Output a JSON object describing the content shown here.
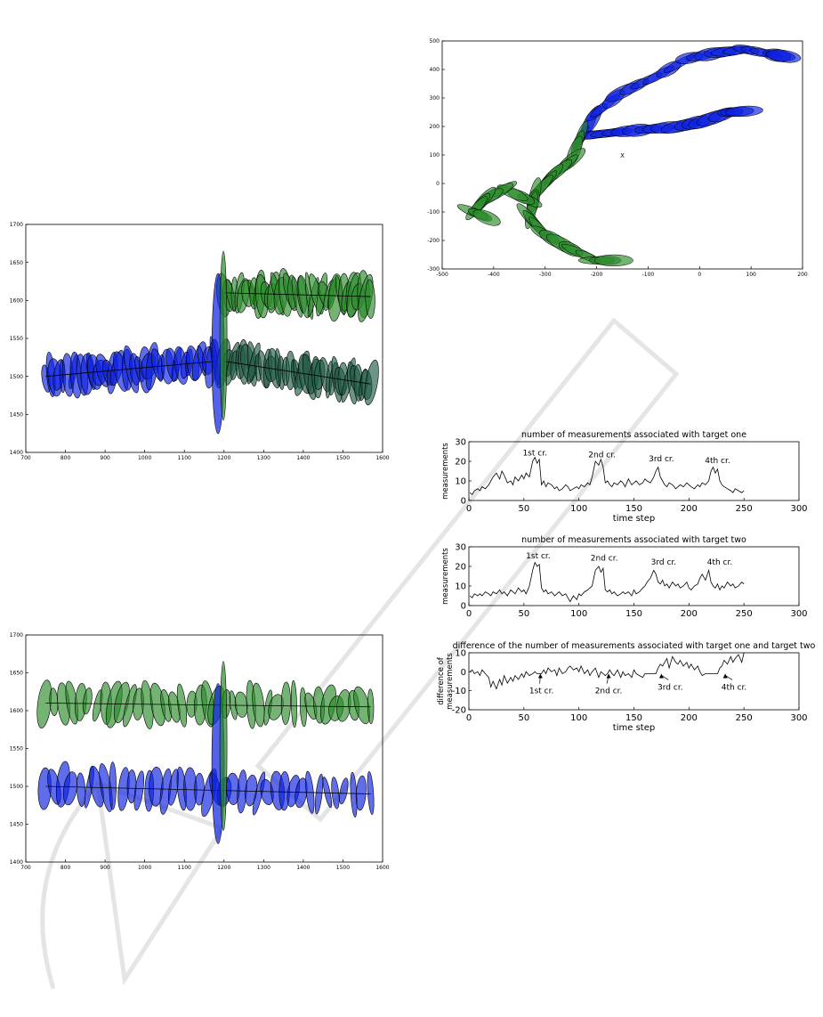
{
  "chart_data": [
    {
      "id": "track-plot-top",
      "type": "scatter",
      "xlim": [
        700,
        1600
      ],
      "ylim": [
        1400,
        1700
      ],
      "xticks": [
        700,
        800,
        900,
        1000,
        1100,
        1200,
        1300,
        1400,
        1500,
        1600
      ],
      "yticks": [
        1400,
        1450,
        1500,
        1550,
        1600,
        1650,
        1700
      ],
      "grid": false,
      "legend": "none",
      "title": "",
      "xlabel": "",
      "ylabel": "",
      "series": [
        {
          "color": "#0b1fe0",
          "x": [
            750,
            1180
          ],
          "y": [
            1500,
            1520
          ]
        },
        {
          "color": "#2a8a2a",
          "x": [
            1200,
            1570
          ],
          "y": [
            1610,
            1605
          ]
        },
        {
          "color": "#1f5a44",
          "x": [
            1200,
            1570
          ],
          "y": [
            1520,
            1490
          ]
        }
      ]
    },
    {
      "id": "track-plot-bottom",
      "type": "scatter",
      "xlim": [
        700,
        1600
      ],
      "ylim": [
        1400,
        1700
      ],
      "xticks": [
        700,
        800,
        900,
        1000,
        1100,
        1200,
        1300,
        1400,
        1500,
        1600
      ],
      "yticks": [
        1400,
        1450,
        1500,
        1550,
        1600,
        1650,
        1700
      ],
      "grid": false,
      "legend": "none",
      "title": "",
      "xlabel": "",
      "ylabel": "",
      "series": [
        {
          "color": "#0b1fe0",
          "x": [
            750,
            1570
          ],
          "y": [
            1500,
            1490
          ]
        },
        {
          "color": "#2a8a2a",
          "x": [
            750,
            1570
          ],
          "y": [
            1610,
            1605
          ]
        }
      ]
    },
    {
      "id": "xy-track-plot",
      "type": "scatter",
      "xlim": [
        -500,
        200
      ],
      "ylim": [
        -300,
        500
      ],
      "xticks": [
        -500,
        -400,
        -300,
        -200,
        -100,
        0,
        100,
        200
      ],
      "yticks": [
        -300,
        -200,
        -100,
        0,
        100,
        200,
        300,
        400,
        500
      ],
      "grid": false,
      "legend": "none",
      "title": "",
      "xlabel": "",
      "ylabel": "",
      "marker": {
        "x": -150,
        "y": 100,
        "label": "X"
      },
      "series": [
        {
          "color": "#0b1fe0",
          "x": [
            -230,
            170
          ],
          "y": [
            160,
            440
          ]
        },
        {
          "color": "#2a8a2a",
          "x": [
            -440,
            -180
          ],
          "y": [
            -100,
            -270
          ]
        }
      ]
    },
    {
      "id": "meas-target-one",
      "type": "line",
      "title": "number of measurements associated with target one",
      "xlabel": "time step",
      "ylabel": "measurements",
      "xlim": [
        0,
        300
      ],
      "ylim": [
        0,
        30
      ],
      "xticks": [
        0,
        50,
        100,
        150,
        200,
        250,
        300
      ],
      "yticks": [
        0,
        10,
        20,
        30
      ],
      "grid": false,
      "annotations": [
        {
          "text": "1st cr.",
          "x": 60,
          "y": 23
        },
        {
          "text": "2nd cr.",
          "x": 121,
          "y": 22
        },
        {
          "text": "3rd cr.",
          "x": 175,
          "y": 20
        },
        {
          "text": "4th cr.",
          "x": 226,
          "y": 19
        }
      ],
      "series": [
        {
          "x": [
            1,
            3,
            5,
            8,
            10,
            12,
            15,
            18,
            20,
            22,
            25,
            28,
            30,
            32,
            35,
            38,
            40,
            42,
            45,
            48,
            50,
            52,
            55,
            58,
            60,
            62,
            64,
            66,
            68,
            70,
            72,
            75,
            78,
            80,
            82,
            85,
            88,
            90,
            92,
            95,
            98,
            100,
            102,
            105,
            108,
            110,
            112,
            115,
            118,
            120,
            122,
            124,
            126,
            128,
            130,
            132,
            135,
            138,
            140,
            142,
            145,
            148,
            150,
            152,
            155,
            158,
            160,
            162,
            165,
            168,
            170,
            172,
            174,
            176,
            178,
            180,
            182,
            185,
            188,
            190,
            192,
            195,
            198,
            200,
            202,
            205,
            208,
            210,
            212,
            215,
            218,
            220,
            222,
            224,
            226,
            228,
            230,
            232,
            235,
            238,
            240,
            242,
            245,
            248,
            250
          ],
          "y": [
            4,
            3,
            5,
            6,
            5,
            7,
            6,
            8,
            10,
            12,
            14,
            11,
            15,
            13,
            9,
            10,
            8,
            12,
            10,
            13,
            11,
            14,
            12,
            20,
            22,
            19,
            21,
            8,
            10,
            7,
            9,
            8,
            6,
            7,
            5,
            6,
            8,
            7,
            5,
            6,
            7,
            6,
            8,
            7,
            9,
            8,
            12,
            20,
            18,
            21,
            17,
            9,
            10,
            8,
            7,
            9,
            8,
            10,
            9,
            7,
            11,
            8,
            9,
            10,
            8,
            9,
            11,
            10,
            9,
            12,
            15,
            17,
            12,
            10,
            8,
            7,
            9,
            8,
            6,
            7,
            8,
            7,
            9,
            8,
            7,
            6,
            8,
            7,
            9,
            8,
            10,
            15,
            17,
            14,
            16,
            10,
            8,
            7,
            6,
            5,
            4,
            6,
            5,
            4,
            5
          ]
        }
      ]
    },
    {
      "id": "meas-target-two",
      "type": "line",
      "title": "number of measurements associated with target two",
      "xlabel": "",
      "ylabel": "measurements",
      "xlim": [
        0,
        300
      ],
      "ylim": [
        0,
        30
      ],
      "xticks": [
        0,
        50,
        100,
        150,
        200,
        250,
        300
      ],
      "yticks": [
        0,
        10,
        20,
        30
      ],
      "grid": false,
      "annotations": [
        {
          "text": "1st cr.",
          "x": 63,
          "y": 24
        },
        {
          "text": "2nd cr.",
          "x": 123,
          "y": 23
        },
        {
          "text": "3rd cr.",
          "x": 177,
          "y": 21
        },
        {
          "text": "4th cr.",
          "x": 228,
          "y": 21
        }
      ],
      "series": [
        {
          "x": [
            1,
            3,
            5,
            8,
            10,
            12,
            15,
            18,
            20,
            22,
            25,
            28,
            30,
            32,
            35,
            38,
            40,
            42,
            45,
            48,
            50,
            52,
            55,
            58,
            60,
            62,
            64,
            66,
            68,
            70,
            72,
            75,
            78,
            80,
            82,
            85,
            88,
            90,
            92,
            95,
            98,
            100,
            102,
            105,
            108,
            110,
            112,
            115,
            118,
            120,
            122,
            124,
            126,
            128,
            130,
            132,
            135,
            138,
            140,
            142,
            145,
            148,
            150,
            152,
            155,
            158,
            160,
            162,
            165,
            168,
            170,
            172,
            174,
            176,
            178,
            180,
            182,
            185,
            188,
            190,
            192,
            195,
            198,
            200,
            202,
            205,
            208,
            210,
            212,
            215,
            218,
            220,
            222,
            224,
            226,
            228,
            230,
            232,
            235,
            238,
            240,
            242,
            245,
            248,
            250
          ],
          "y": [
            5,
            4,
            6,
            5,
            6,
            5,
            7,
            6,
            5,
            7,
            6,
            8,
            6,
            7,
            5,
            8,
            7,
            6,
            9,
            7,
            8,
            6,
            10,
            18,
            22,
            20,
            21,
            9,
            7,
            8,
            6,
            7,
            5,
            6,
            7,
            5,
            6,
            4,
            2,
            5,
            3,
            6,
            5,
            7,
            8,
            9,
            10,
            18,
            20,
            17,
            19,
            8,
            7,
            8,
            6,
            7,
            5,
            6,
            7,
            6,
            7,
            5,
            8,
            6,
            7,
            9,
            10,
            12,
            14,
            18,
            16,
            12,
            11,
            13,
            10,
            11,
            9,
            12,
            10,
            11,
            9,
            10,
            12,
            9,
            8,
            10,
            11,
            14,
            16,
            13,
            18,
            12,
            10,
            9,
            11,
            8,
            10,
            9,
            12,
            10,
            11,
            9,
            10,
            12,
            11
          ]
        }
      ]
    },
    {
      "id": "meas-difference",
      "type": "line",
      "title": "difference of the number of measurements associated with target one and target two",
      "xlabel": "time step",
      "ylabel": "difference of measurements",
      "xlim": [
        0,
        300
      ],
      "ylim": [
        -20,
        10
      ],
      "xticks": [
        0,
        50,
        100,
        150,
        200,
        250,
        300
      ],
      "yticks": [
        -20,
        -10,
        0,
        10
      ],
      "grid": false,
      "annotations": [
        {
          "text": "1st cr.",
          "x": 65,
          "y": -1,
          "label_x": 66,
          "label_y": -10
        },
        {
          "text": "2nd cr.",
          "x": 127,
          "y": -1,
          "label_x": 127,
          "label_y": -10
        },
        {
          "text": "3rd cr.",
          "x": 175,
          "y": -1,
          "label_x": 183,
          "label_y": -8
        },
        {
          "text": "4th cr.",
          "x": 233,
          "y": -1,
          "label_x": 241,
          "label_y": -8
        }
      ],
      "series": [
        {
          "x": [
            1,
            3,
            5,
            8,
            10,
            12,
            15,
            18,
            20,
            22,
            25,
            28,
            30,
            32,
            35,
            38,
            40,
            42,
            45,
            48,
            50,
            52,
            55,
            58,
            60,
            62,
            64,
            66,
            68,
            70,
            72,
            75,
            78,
            80,
            82,
            85,
            88,
            90,
            92,
            95,
            98,
            100,
            102,
            105,
            108,
            110,
            112,
            115,
            118,
            120,
            122,
            124,
            126,
            128,
            130,
            132,
            135,
            138,
            140,
            142,
            145,
            148,
            150,
            152,
            155,
            158,
            160,
            162,
            165,
            168,
            170,
            172,
            174,
            176,
            178,
            180,
            182,
            185,
            188,
            190,
            192,
            195,
            198,
            200,
            202,
            205,
            208,
            210,
            212,
            215,
            218,
            220,
            222,
            224,
            226,
            228,
            230,
            232,
            235,
            238,
            240,
            242,
            245,
            248,
            250
          ],
          "y": [
            0,
            1,
            -1,
            0,
            -2,
            1,
            -1,
            -3,
            -8,
            -5,
            -9,
            -4,
            -7,
            -2,
            -6,
            -3,
            -5,
            -2,
            -4,
            -1,
            -3,
            0,
            -2,
            -1,
            0,
            -1,
            -1,
            -1,
            1,
            -1,
            2,
            0,
            1,
            -2,
            2,
            -1,
            0,
            2,
            3,
            1,
            2,
            0,
            3,
            -1,
            1,
            -2,
            0,
            2,
            -3,
            0,
            -1,
            -2,
            -1,
            1,
            -1,
            -2,
            1,
            -3,
            0,
            -2,
            -1,
            -3,
            1,
            -1,
            -2,
            -3,
            -1,
            -1,
            -1,
            -1,
            -1,
            2,
            4,
            3,
            5,
            7,
            2,
            8,
            5,
            4,
            6,
            3,
            5,
            2,
            4,
            1,
            3,
            0,
            -2,
            -1,
            -1,
            -1,
            -1,
            -1,
            -1,
            2,
            3,
            6,
            4,
            8,
            5,
            7,
            9,
            5,
            10
          ]
        }
      ]
    }
  ]
}
